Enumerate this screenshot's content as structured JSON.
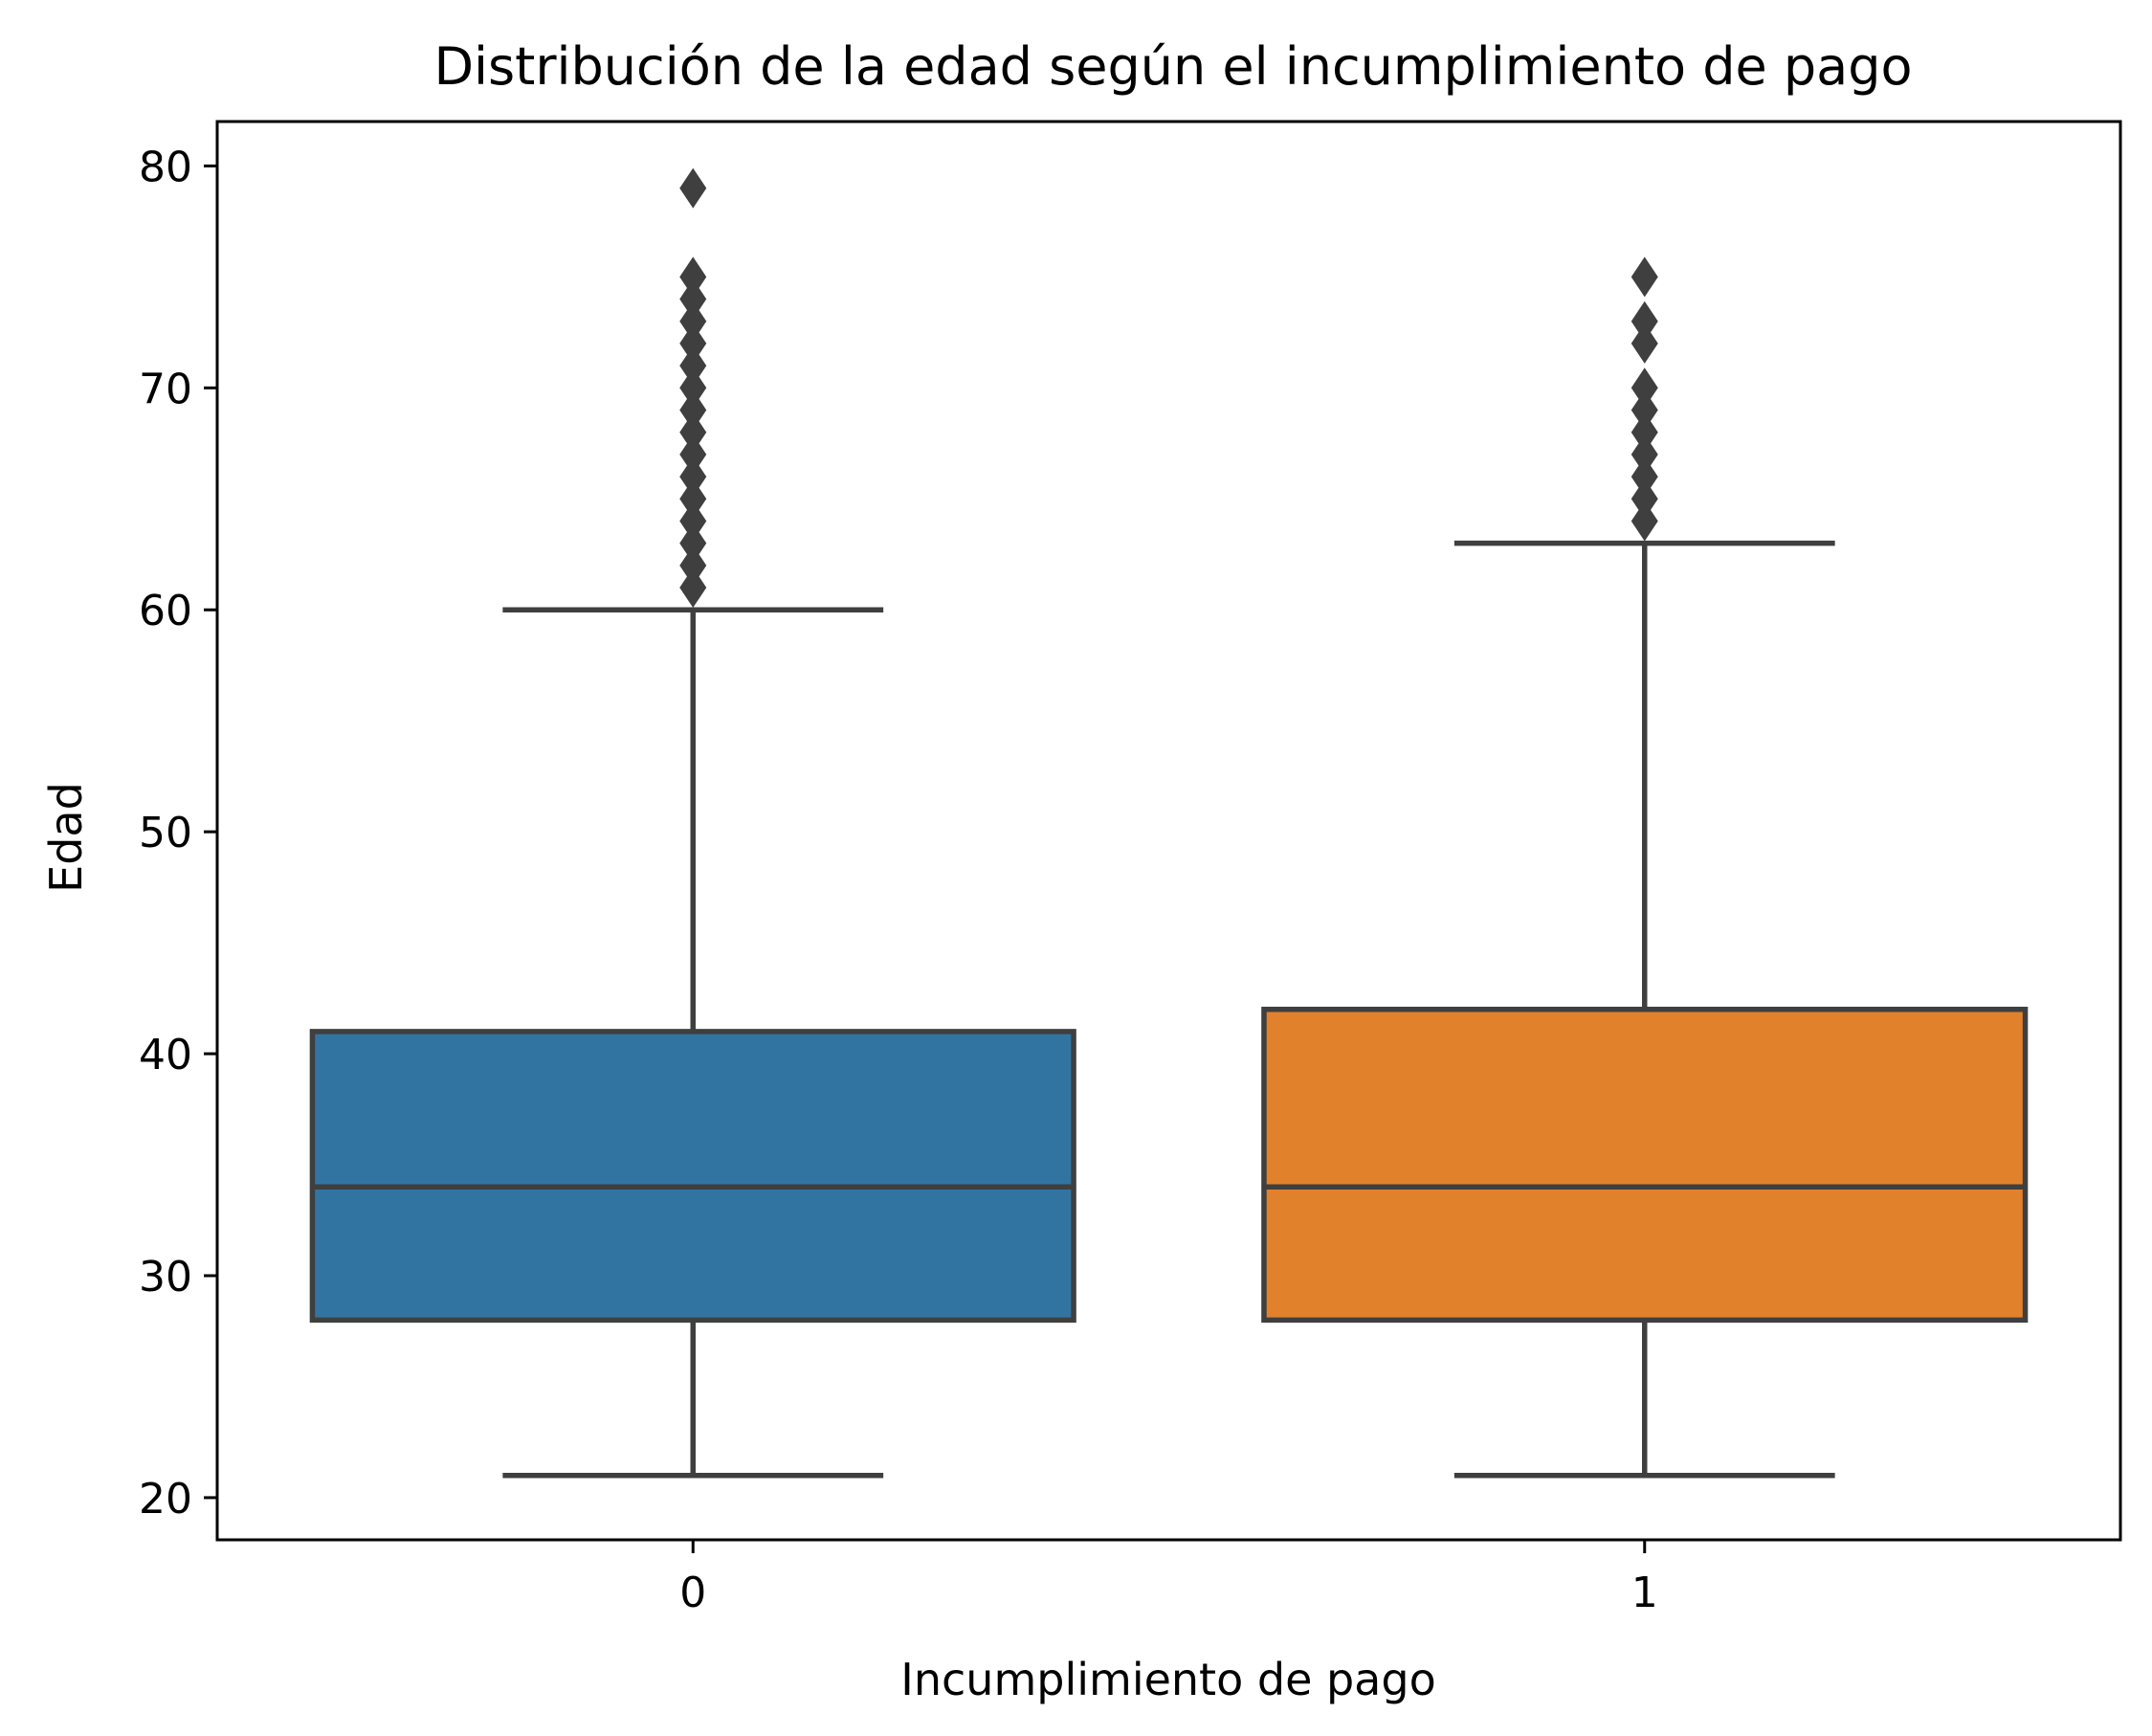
{
  "chart_data": {
    "type": "box",
    "title": "Distribución de la edad según el incumplimiento de pago",
    "xlabel": "Incumplimiento de pago",
    "ylabel": "Edad",
    "categories": [
      "0",
      "1"
    ],
    "ylim": [
      18.1,
      82
    ],
    "yticks": [
      20,
      30,
      40,
      50,
      60,
      70,
      80
    ],
    "grid": false,
    "boxes": [
      {
        "category": "0",
        "color": "#3274a1",
        "whisker_low": 21,
        "q1": 28,
        "median": 34,
        "q3": 41,
        "whisker_high": 60,
        "outliers": [
          61,
          62,
          63,
          64,
          65,
          66,
          67,
          68,
          69,
          70,
          71,
          72,
          73,
          74,
          75,
          79
        ]
      },
      {
        "category": "1",
        "color": "#e1812c",
        "whisker_low": 21,
        "q1": 28,
        "median": 34,
        "q3": 42,
        "whisker_high": 63,
        "outliers": [
          64,
          65,
          66,
          67,
          68,
          69,
          70,
          72,
          73,
          75
        ]
      }
    ],
    "line_color": "#3f3f3f"
  }
}
